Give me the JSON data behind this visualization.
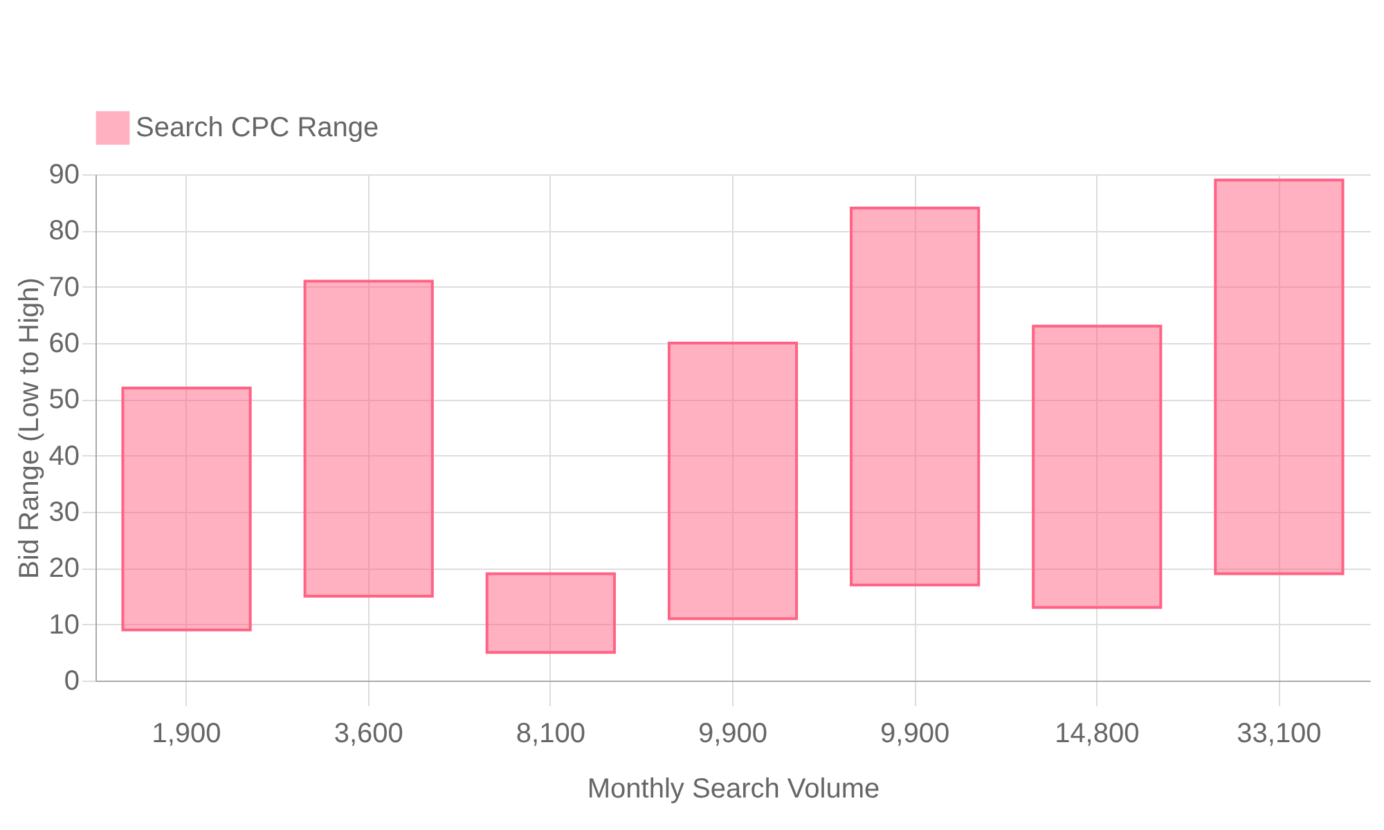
{
  "chart_data": {
    "type": "bar",
    "xlabel": "Monthly Search Volume",
    "ylabel": "Bid Range (Low to High)",
    "categories": [
      "1,900",
      "3,600",
      "8,100",
      "9,900",
      "9,900",
      "14,800",
      "33,100"
    ],
    "series": [
      {
        "name": "Search CPC Range",
        "color": "#ff6384",
        "values": [
          43,
          56,
          14,
          49,
          67,
          50,
          70
        ],
        "base": [
          9,
          15,
          5,
          11,
          17,
          13,
          19
        ]
      }
    ],
    "ylim": [
      0,
      90
    ],
    "yticks": [
      0,
      10,
      20,
      30,
      40,
      50,
      60,
      70,
      80,
      90
    ],
    "grid": true,
    "legend": "top"
  }
}
